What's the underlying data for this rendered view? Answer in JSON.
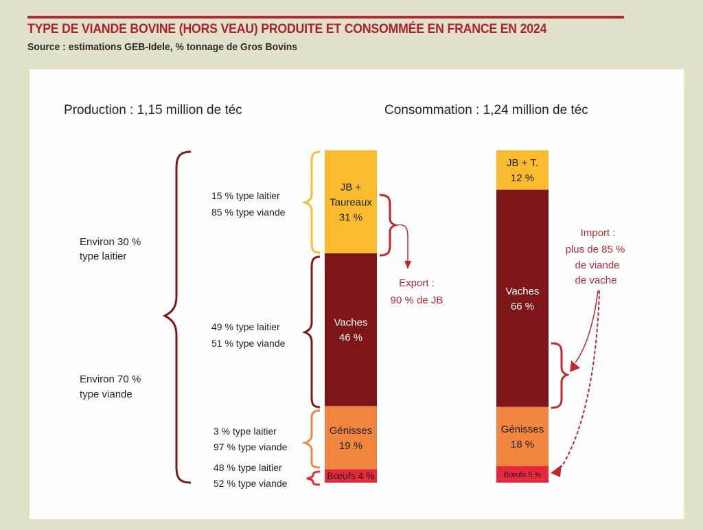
{
  "header": {
    "title": "TYPE DE VIANDE BOVINE (HORS VEAU) PRODUITE ET CONSOMMÉE EN FRANCE EN 2024",
    "subtitle": "Source : estimations GEB-Idele, % tonnage de Gros Bovins"
  },
  "colors": {
    "jb": "#fbbb2f",
    "vaches": "#7d1619",
    "genisses": "#f08540",
    "boeufs": "#e8283a",
    "accent": "#c0272f",
    "title": "#a8232b"
  },
  "chart_data": {
    "type": "bar",
    "subtype": "stacked-100",
    "title": "TYPE DE VIANDE BOVINE (HORS VEAU) PRODUITE ET CONSOMMÉE EN FRANCE EN 2024",
    "categories": [
      "Production",
      "Consommation"
    ],
    "headings": [
      "Production : 1,15 million de téc",
      "Consommation : 1,24 million de téc"
    ],
    "unit": "% tonnage",
    "ylim": [
      0,
      100
    ],
    "series": [
      {
        "name": "JB + Taureaux",
        "values": [
          31,
          12
        ],
        "labels": [
          [
            "JB +",
            "Taureaux",
            "31 %"
          ],
          [
            "JB + T.",
            "12 %"
          ]
        ]
      },
      {
        "name": "Vaches",
        "values": [
          46,
          66
        ],
        "labels": [
          [
            "Vaches",
            "46 %"
          ],
          [
            "Vaches",
            "66 %"
          ]
        ]
      },
      {
        "name": "Génisses",
        "values": [
          19,
          18
        ],
        "labels": [
          [
            "Génisses",
            "19 %"
          ],
          [
            "Génisses",
            "18 %"
          ]
        ]
      },
      {
        "name": "Boeufs",
        "values": [
          4,
          5
        ],
        "labels": [
          [
            "Bœufs 4 %"
          ],
          [
            "Bœufs 5 %"
          ]
        ]
      }
    ],
    "annotations": {
      "production_breakdown": [
        [
          "15 % type laitier",
          "85 % type viande"
        ],
        [
          "49 % type laitier",
          "51 % type viande"
        ],
        [
          "3 % type laitier",
          "97 % type viande"
        ],
        [
          "48 % type laitier",
          "52 % type viande"
        ]
      ],
      "overall": [
        [
          "Environ 30 %",
          "type laitier"
        ],
        [
          "Environ 70 %",
          "type viande"
        ]
      ],
      "export": [
        "Export :",
        "90 % de JB"
      ],
      "import": [
        "Import :",
        "plus de 85 %",
        "de viande",
        "de vache"
      ]
    }
  }
}
